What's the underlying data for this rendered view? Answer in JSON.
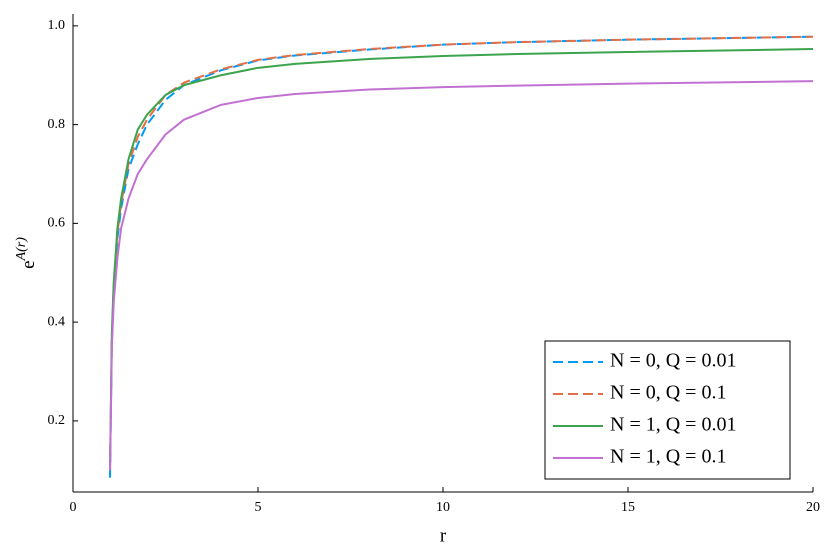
{
  "chart_data": {
    "type": "line",
    "xlabel": "r",
    "ylabel": "e",
    "ylabel_superscript": "A(r)",
    "x": [
      1.0,
      1.05,
      1.1,
      1.2,
      1.3,
      1.5,
      1.75,
      2,
      2.5,
      3,
      4,
      5,
      6,
      8,
      10,
      12,
      15,
      20
    ],
    "series": [
      {
        "name": "N = 0, Q = 0.01",
        "color": "#009af9",
        "dash": true,
        "values": [
          0.085,
          0.36,
          0.46,
          0.57,
          0.63,
          0.71,
          0.76,
          0.8,
          0.85,
          0.88,
          0.91,
          0.93,
          0.94,
          0.952,
          0.962,
          0.967,
          0.972,
          0.978
        ]
      },
      {
        "name": "N = 0, Q = 0.1",
        "color": "#e26f46",
        "dash": true,
        "values": [
          0.1,
          0.37,
          0.47,
          0.58,
          0.64,
          0.72,
          0.775,
          0.81,
          0.86,
          0.885,
          0.912,
          0.931,
          0.941,
          0.953,
          0.962,
          0.967,
          0.972,
          0.978
        ]
      },
      {
        "name": "N = 1, Q = 0.01",
        "color": "#3da44d",
        "dash": false,
        "values": [
          0.1,
          0.38,
          0.48,
          0.59,
          0.65,
          0.73,
          0.79,
          0.82,
          0.86,
          0.88,
          0.9,
          0.915,
          0.923,
          0.933,
          0.939,
          0.943,
          0.947,
          0.953
        ]
      },
      {
        "name": "N = 1, Q = 0.1",
        "color": "#c271d2",
        "dash": false,
        "values": [
          0.1,
          0.35,
          0.44,
          0.53,
          0.59,
          0.65,
          0.7,
          0.73,
          0.78,
          0.81,
          0.84,
          0.854,
          0.862,
          0.871,
          0.876,
          0.879,
          0.883,
          0.888
        ]
      }
    ],
    "xlim": [
      0,
      20
    ],
    "xticks": [
      0,
      5,
      10,
      15,
      20
    ],
    "ylim": [
      0.056,
      1.024
    ],
    "yticks": [
      0.2,
      0.4,
      0.6,
      0.8,
      {
        "value": 1,
        "label": "1.0"
      }
    ],
    "grid": false,
    "legend": "bottom right"
  }
}
